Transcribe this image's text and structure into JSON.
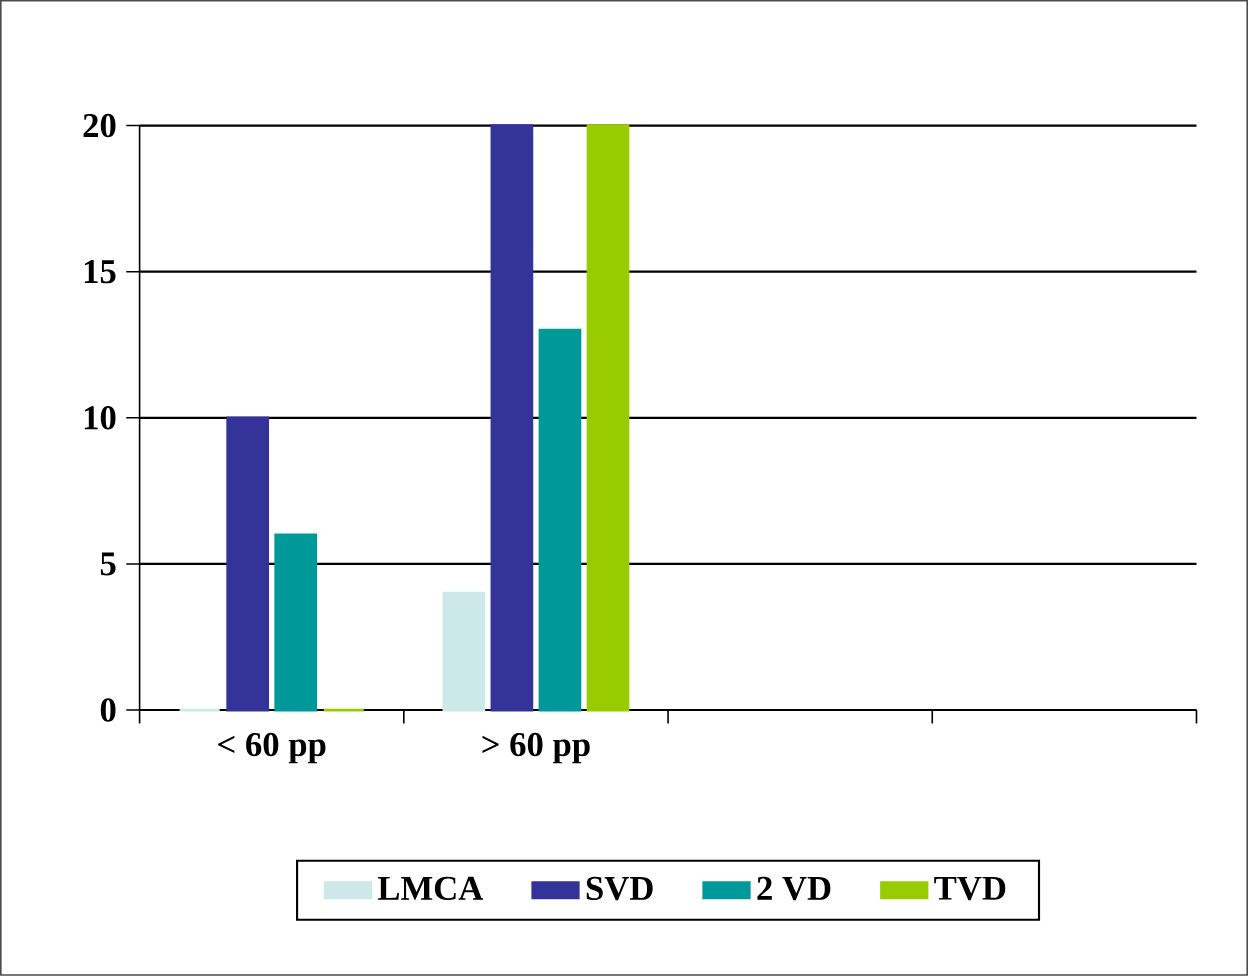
{
  "chart_data": {
    "type": "bar",
    "categories": [
      "< 60 pp",
      "> 60 pp",
      null,
      null
    ],
    "series": [
      {
        "name": "LMCA",
        "color": "#cce8e8",
        "values": [
          0,
          4,
          null,
          null
        ]
      },
      {
        "name": "SVD",
        "color": "#333399",
        "values": [
          10,
          20,
          null,
          null
        ]
      },
      {
        "name": "2 VD",
        "color": "#009999",
        "values": [
          6,
          13,
          null,
          null
        ]
      },
      {
        "name": "TVD",
        "color": "#99cc00",
        "values": [
          0,
          20,
          null,
          null
        ]
      }
    ],
    "ylim": [
      0,
      20
    ],
    "yticks": [
      0,
      5,
      10,
      15,
      20
    ],
    "grid": "y",
    "legend": "bottom"
  }
}
